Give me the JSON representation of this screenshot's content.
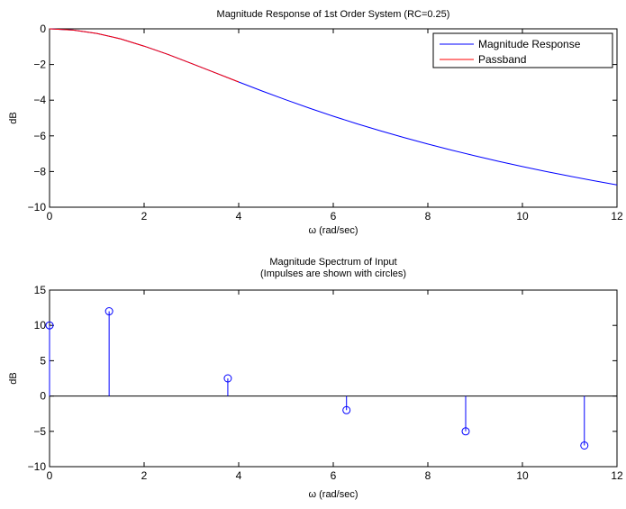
{
  "chart_data": [
    {
      "type": "line",
      "title": "Magnitude Response of 1st Order System (RC=0.25)",
      "xlabel": "ω (rad/sec)",
      "ylabel": "dB",
      "xlim": [
        0,
        12
      ],
      "ylim": [
        -10,
        0
      ],
      "xticks": [
        0,
        2,
        4,
        6,
        8,
        10,
        12
      ],
      "yticks": [
        0,
        -2,
        -4,
        -6,
        -8,
        -10
      ],
      "xtick_labels": [
        "0",
        "2",
        "4",
        "6",
        "8",
        "10",
        "12"
      ],
      "ytick_labels": [
        "0",
        "−2",
        "−4",
        "−6",
        "−8",
        "−10"
      ],
      "grid": false,
      "legend_position": "top-right",
      "series": [
        {
          "name": "Magnitude Response",
          "color": "#0000ff",
          "x": [
            0,
            0.5,
            1,
            1.5,
            2,
            2.5,
            3,
            3.5,
            4,
            4.5,
            5,
            5.5,
            6,
            6.5,
            7,
            7.5,
            8,
            8.5,
            9,
            9.5,
            10,
            10.5,
            11,
            11.5,
            12
          ],
          "y": [
            0,
            -0.07,
            -0.26,
            -0.56,
            -0.97,
            -1.43,
            -1.94,
            -2.46,
            -2.98,
            -3.49,
            -3.98,
            -4.45,
            -4.9,
            -5.32,
            -5.72,
            -6.1,
            -6.46,
            -6.8,
            -7.12,
            -7.43,
            -7.72,
            -8.0,
            -8.26,
            -8.51,
            -8.75
          ]
        },
        {
          "name": "Passband",
          "color": "#ff0000",
          "x": [
            0,
            0.5,
            1,
            1.5,
            2,
            2.5,
            3,
            3.5,
            4
          ],
          "y": [
            0,
            -0.07,
            -0.26,
            -0.56,
            -0.97,
            -1.43,
            -1.94,
            -2.46,
            -2.98
          ]
        }
      ]
    },
    {
      "type": "stem",
      "title": "Magnitude Spectrum of Input",
      "subtitle": "(Impulses are shown with circles)",
      "xlabel": "ω (rad/sec)",
      "ylabel": "dB",
      "xlim": [
        0,
        12
      ],
      "ylim": [
        -10,
        15
      ],
      "xticks": [
        0,
        2,
        4,
        6,
        8,
        10,
        12
      ],
      "yticks": [
        15,
        10,
        5,
        0,
        -5,
        -10
      ],
      "xtick_labels": [
        "0",
        "2",
        "4",
        "6",
        "8",
        "10",
        "12"
      ],
      "ytick_labels": [
        "15",
        "10",
        "5",
        "0",
        "−5",
        "−10"
      ],
      "grid": false,
      "color": "#0000ff",
      "x": [
        0,
        1.26,
        3.77,
        6.28,
        8.8,
        11.31
      ],
      "y": [
        10,
        12,
        2.5,
        -2,
        -5,
        -7
      ]
    }
  ]
}
